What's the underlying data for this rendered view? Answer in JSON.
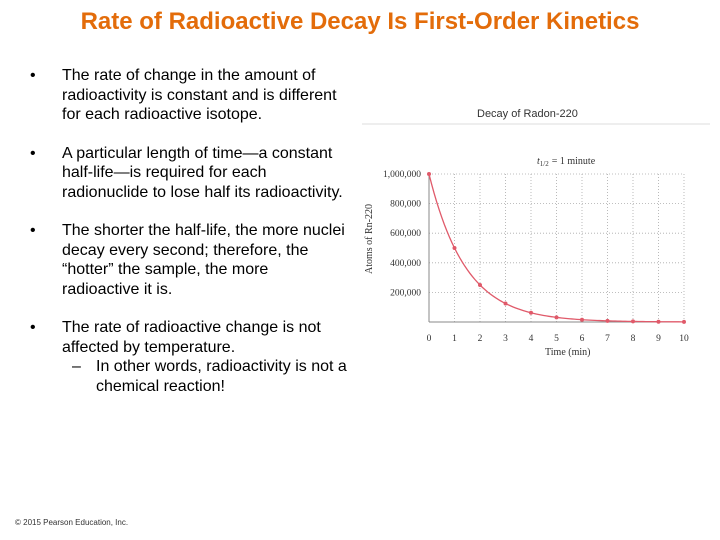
{
  "slide": {
    "title": "Rate of Radioactive Decay Is First-Order Kinetics",
    "copyright": "© 2015 Pearson Education, Inc."
  },
  "bullets": [
    {
      "text": "The rate of change in the amount of radioactivity is constant and is different for each radioactive isotope."
    },
    {
      "text": "A particular length of time—a constant half-life—is required for each radionuclide to lose half its radioactivity."
    },
    {
      "text": "The shorter the half-life, the more nuclei decay every second; therefore, the “hotter” the sample, the more radioactive it is."
    },
    {
      "text": "The rate of radioactive change is not affected by temperature.",
      "sub": "In other words, radioactivity is not a chemical reaction!"
    }
  ],
  "icons": {
    "bullet": "•",
    "dash": "–"
  },
  "colors": {
    "title": "#e36c0a",
    "curve": "#e05a6a",
    "grid": "#aaaaaa"
  },
  "chart_data": {
    "type": "line",
    "title": "Decay of Radon-220",
    "annotation_base": "t",
    "annotation_sub": "1/2",
    "annotation_rest": "= 1 minute",
    "xlabel": "Time (min)",
    "ylabel": "Atoms of Rn-220",
    "x": [
      0,
      1,
      2,
      3,
      4,
      5,
      6,
      7,
      8,
      9,
      10
    ],
    "y": [
      1000000,
      500000,
      250000,
      125000,
      62500,
      31250,
      15625,
      7813,
      3906,
      1953,
      977
    ],
    "xticks": [
      "0",
      "1",
      "2",
      "3",
      "4",
      "5",
      "6",
      "7",
      "8",
      "9",
      "10"
    ],
    "yticks": [
      {
        "value": 0,
        "label": ""
      },
      {
        "value": 200000,
        "label": "200,000"
      },
      {
        "value": 400000,
        "label": "400,000"
      },
      {
        "value": 600000,
        "label": "600,000"
      },
      {
        "value": 800000,
        "label": "800,000"
      },
      {
        "value": 1000000,
        "label": "1,000,000"
      }
    ],
    "xlim": [
      0,
      10
    ],
    "ylim": [
      0,
      1000000
    ],
    "grid": true
  }
}
